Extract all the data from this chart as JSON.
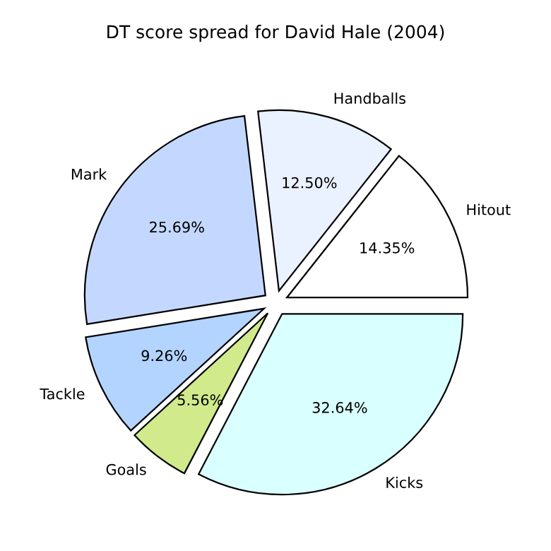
{
  "chart_data": {
    "type": "pie",
    "title": "DT score spread for David Hale (2004)",
    "categories": [
      "Hitout",
      "Handballs",
      "Mark",
      "Tackle",
      "Goals",
      "Kicks"
    ],
    "values": [
      14.35,
      12.5,
      25.69,
      9.26,
      5.56,
      32.64
    ],
    "value_labels": [
      "14.35%",
      "12.50%",
      "25.69%",
      "9.26%",
      "5.56%",
      "32.64%"
    ],
    "colors": [
      "#ffffff",
      "#eaf1ff",
      "#c4d8ff",
      "#b3d4ff",
      "#d0ea8c",
      "#d9ffff"
    ]
  }
}
